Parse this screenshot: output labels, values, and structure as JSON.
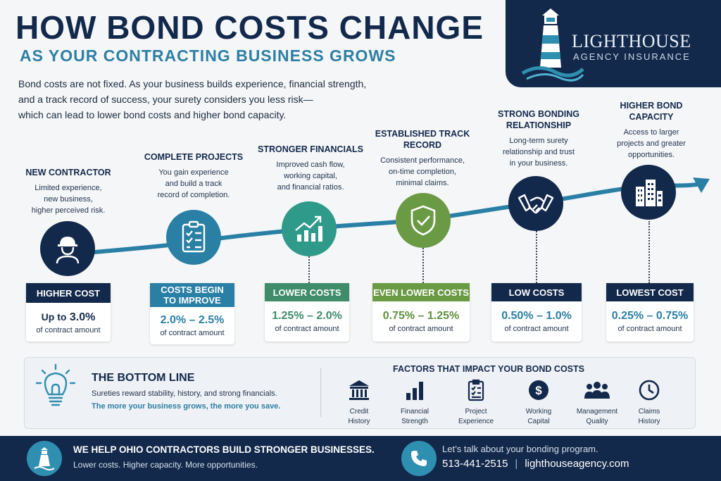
{
  "header": {
    "title": "HOW BOND COSTS CHANGE",
    "subtitle": "AS YOUR CONTRACTING BUSINESS GROWS",
    "intro": [
      "Bond costs are not fixed. As your business builds experience, financial strength,",
      "and a track record of success, your surety considers you less risk—",
      "which can lead to lower bond costs and higher bond capacity."
    ]
  },
  "brand": {
    "name": "LIGHTHOUSE",
    "tagline": "AGENCY INSURANCE"
  },
  "stages": [
    {
      "title": [
        "NEW CONTRACTOR"
      ],
      "desc": [
        "Limited experience,",
        "new business,",
        "higher perceived risk."
      ],
      "icon": "hard-hat-worker-icon",
      "cost_label": [
        "HIGHER COST"
      ],
      "value_prefix": "Up to",
      "value": "3.0%",
      "unit": "of contract amount",
      "color": "#13294b",
      "value_color": "#13294b"
    },
    {
      "title": [
        "COMPLETE PROJECTS"
      ],
      "desc": [
        "You gain experience",
        "and build a track",
        "record of completion."
      ],
      "icon": "clipboard-checklist-icon",
      "cost_label": [
        "COSTS BEGIN",
        "TO IMPROVE"
      ],
      "value_prefix": "",
      "value": "2.0% – 2.5%",
      "unit": "of contract amount",
      "color": "#2a7fa4",
      "value_color": "#2a7fa4"
    },
    {
      "title": [
        "STRONGER FINANCIALS"
      ],
      "desc": [
        "Improved cash flow,",
        "working capital,",
        "and financial ratios."
      ],
      "icon": "growth-chart-icon",
      "cost_label": [
        "LOWER COSTS"
      ],
      "value_prefix": "",
      "value": "1.25% – 2.0%",
      "unit": "of contract amount",
      "color": "#3f8c6a",
      "value_color": "#3f8c6a"
    },
    {
      "title": [
        "ESTABLISHED TRACK",
        "RECORD"
      ],
      "desc": [
        "Consistent performance,",
        "on-time completion,",
        "minimal claims."
      ],
      "icon": "shield-check-icon",
      "cost_label": [
        "EVEN LOWER COSTS"
      ],
      "value_prefix": "",
      "value": "0.75% – 1.25%",
      "unit": "of contract amount",
      "color": "#6b9a45",
      "value_color": "#5f8f3e"
    },
    {
      "title": [
        "STRONG BONDING",
        "RELATIONSHIP"
      ],
      "desc": [
        "Long-term surety",
        "relationship and trust",
        "in your business."
      ],
      "icon": "handshake-icon",
      "cost_label": [
        "LOW COSTS"
      ],
      "value_prefix": "",
      "value": "0.50% – 1.0%",
      "unit": "of contract amount",
      "color": "#13294b",
      "value_color": "#2a7fa4"
    },
    {
      "title": [
        "HIGHER BOND",
        "CAPACITY"
      ],
      "desc": [
        "Access to larger",
        "projects and greater",
        "opportunities."
      ],
      "icon": "office-buildings-icon",
      "cost_label": [
        "LOWEST COST"
      ],
      "value_prefix": "",
      "value": "0.25% – 0.75%",
      "unit": "of contract amount",
      "color": "#13294b",
      "value_color": "#2a7fa4"
    }
  ],
  "bottom_line": {
    "title": "THE BOTTOM LINE",
    "line1": "Sureties reward stability, history, and strong financials.",
    "line2": "The more your business grows, the more you save."
  },
  "factors": {
    "title": "FACTORS THAT IMPACT YOUR BOND COSTS",
    "items": [
      {
        "label": [
          "Credit",
          "History"
        ],
        "icon": "bank-icon"
      },
      {
        "label": [
          "Financial",
          "Strength"
        ],
        "icon": "bar-chart-icon"
      },
      {
        "label": [
          "Project",
          "Experience"
        ],
        "icon": "clipboard-icon"
      },
      {
        "label": [
          "Working",
          "Capital"
        ],
        "icon": "dollar-coin-icon"
      },
      {
        "label": [
          "Management",
          "Quality"
        ],
        "icon": "team-icon"
      },
      {
        "label": [
          "Claims",
          "History"
        ],
        "icon": "clock-icon"
      }
    ]
  },
  "footer": {
    "headline": "WE HELP OHIO CONTRACTORS BUILD STRONGER BUSINESSES.",
    "sub": "Lower costs. Higher capacity. More opportunities.",
    "talk": "Let’s talk about your bonding program.",
    "phone": "513-441-2515",
    "separator": "|",
    "website": "lighthouseagency.com"
  }
}
